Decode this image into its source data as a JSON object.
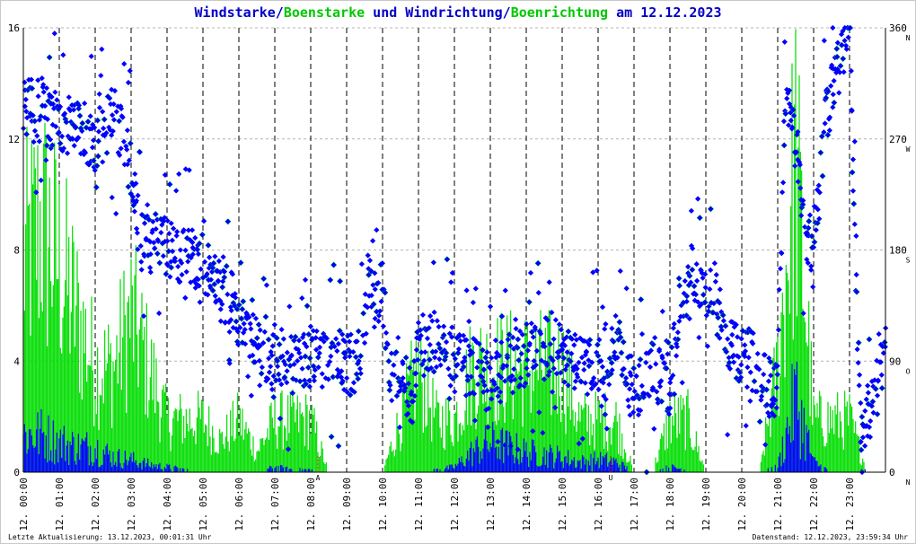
{
  "title": {
    "parts": [
      {
        "text": "Windstarke",
        "color": "#0000c8"
      },
      {
        "text": "/",
        "color": "#0000c8"
      },
      {
        "text": "Boenstarke",
        "color": "#00c800"
      },
      {
        "text": " und ",
        "color": "#0000c8"
      },
      {
        "text": "Windrichtung",
        "color": "#0000c8"
      },
      {
        "text": "/",
        "color": "#0000c8"
      },
      {
        "text": "Boenrichtung",
        "color": "#00c800"
      },
      {
        "text": " am 12.12.2023",
        "color": "#0000c8"
      }
    ]
  },
  "footer": {
    "left": "Letzte Aktualisierung: 13.12.2023, 00:01:31 Uhr",
    "right": "Datenstand: 12.12.2023, 23:59:34 Uhr"
  },
  "colors": {
    "wind": "#0000ff",
    "gust": "#00dd00",
    "grid": "#b4b4b4",
    "midnight_lines": "#000000",
    "marker": "#ff0000"
  },
  "chart_data": {
    "type": "scatter",
    "x_labels": [
      "12. 00:00",
      "12. 01:00",
      "12. 02:00",
      "12. 03:00",
      "12. 04:00",
      "12. 05:00",
      "12. 06:00",
      "12. 07:00",
      "12. 08:00",
      "12. 09:00",
      "12. 10:00",
      "12. 11:00",
      "12. 12:00",
      "12. 13:00",
      "12. 14:00",
      "12. 15:00",
      "12. 16:00",
      "12. 17:00",
      "12. 18:00",
      "12. 19:00",
      "12. 20:00",
      "12. 21:00",
      "12. 22:00",
      "12. 23:00"
    ],
    "xlim_hours": [
      0,
      24
    ],
    "left_axis": {
      "ticks": [
        0,
        4,
        8,
        12,
        16
      ],
      "ylim": [
        0,
        16
      ]
    },
    "right_axis": {
      "ticks": [
        0,
        90,
        180,
        270,
        360
      ],
      "ylim": [
        0,
        360
      ],
      "compass": [
        "N",
        "O",
        "S",
        "W",
        "N"
      ]
    },
    "grid": true,
    "markers": [
      {
        "label": "A",
        "hour": 8.2
      },
      {
        "label": "U",
        "hour": 16.35
      }
    ],
    "wind_speed_profile": {
      "hours": [
        0,
        0.5,
        1,
        1.5,
        2,
        2.5,
        3,
        3.5,
        4,
        4.5,
        5,
        5.5,
        6,
        6.5,
        7,
        7.5,
        8,
        8.5,
        9,
        9.5,
        10,
        10.5,
        11,
        11.5,
        12,
        12.5,
        13,
        13.5,
        14,
        14.5,
        15,
        15.5,
        16,
        16.5,
        17,
        17.5,
        18,
        18.5,
        19,
        19.5,
        20,
        20.5,
        21,
        21.5,
        22,
        22.5,
        23,
        23.5,
        24
      ],
      "values": [
        1.5,
        1.5,
        1.2,
        1.0,
        1.0,
        0.6,
        0.5,
        0.3,
        0.2,
        0.1,
        0,
        0,
        0,
        0,
        0.2,
        0.1,
        0.1,
        0,
        0,
        0,
        0,
        0,
        0,
        0.1,
        0.2,
        0.8,
        1.2,
        1.0,
        0.8,
        0.7,
        0.6,
        0.4,
        0.5,
        0.4,
        0,
        0,
        0.2,
        0.1,
        0,
        0,
        0,
        0,
        0.2,
        3.0,
        0.4,
        0,
        0,
        0.1,
        0
      ]
    },
    "gust_speed_profile": {
      "hours": [
        0,
        0.5,
        1,
        1.5,
        2,
        2.5,
        3,
        3.5,
        4,
        4.5,
        5,
        5.5,
        6,
        6.5,
        7,
        7.5,
        8,
        8.5,
        9,
        9.5,
        10,
        10.5,
        11,
        11.5,
        12,
        12.5,
        13,
        13.5,
        14,
        14.5,
        15,
        15.5,
        16,
        16.5,
        17,
        17.5,
        18,
        18.5,
        19,
        19.5,
        20,
        20.5,
        21,
        21.5,
        22,
        22.5,
        23,
        23.5,
        24
      ],
      "values": [
        10,
        12,
        10,
        7.5,
        5,
        5,
        7.5,
        5,
        2.5,
        2.5,
        2.5,
        1.5,
        2.5,
        1.0,
        2.5,
        2.5,
        2.5,
        0,
        0,
        0,
        0,
        2.5,
        5,
        2.5,
        2.5,
        5,
        5,
        5,
        5,
        5,
        5,
        2.5,
        2.5,
        2.5,
        0,
        0,
        2.5,
        2.5,
        0,
        0,
        0,
        0,
        5,
        15,
        2.5,
        2.5,
        2.5,
        0,
        0
      ]
    },
    "direction_profile_deg": {
      "hours": [
        0,
        0.5,
        1,
        1.5,
        2,
        2.5,
        3,
        3.3,
        3.7,
        4,
        4.5,
        5,
        5.3,
        5.6,
        6,
        6.5,
        7,
        7.5,
        8,
        8.5,
        9,
        9.3,
        9.6,
        10,
        10.2,
        10.5,
        10.8,
        11,
        11.5,
        12,
        12.5,
        13,
        13.5,
        14,
        14.5,
        15,
        15.5,
        16,
        16.5,
        17,
        17.5,
        18,
        18.3,
        18.6,
        19,
        19.3,
        19.6,
        20,
        20.3,
        20.7,
        21,
        21.2,
        21.5,
        21.7,
        22,
        22.3,
        22.7,
        23,
        23.3,
        23.6,
        24
      ],
      "values": [
        300,
        290,
        285,
        280,
        265,
        290,
        250,
        190,
        185,
        180,
        175,
        170,
        150,
        145,
        130,
        100,
        85,
        85,
        90,
        95,
        90,
        85,
        140,
        145,
        80,
        90,
        55,
        100,
        110,
        90,
        85,
        70,
        90,
        95,
        100,
        100,
        85,
        90,
        110,
        60,
        80,
        70,
        140,
        160,
        150,
        140,
        100,
        95,
        90,
        70,
        70,
        300,
        270,
        200,
        170,
        280,
        330,
        355,
        40,
        50,
        100
      ]
    },
    "direction_scatter_spread_deg": 25
  }
}
